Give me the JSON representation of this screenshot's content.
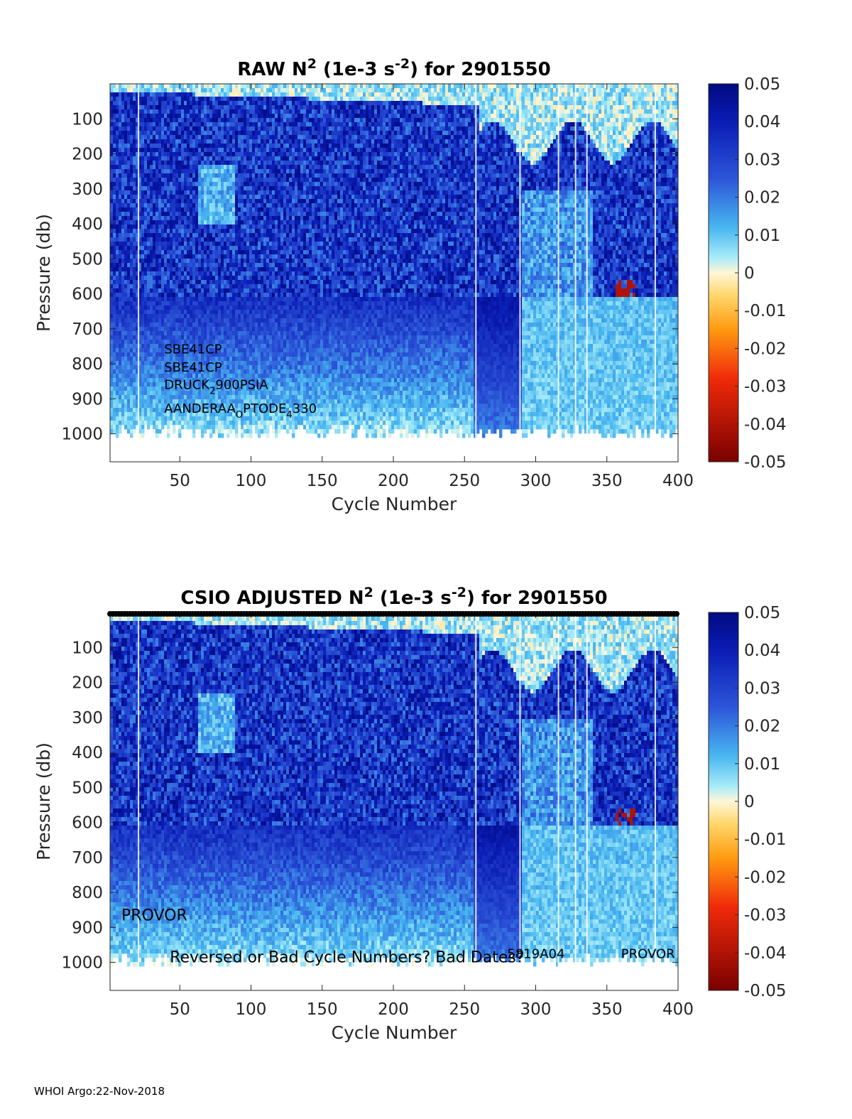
{
  "chart_data": [
    {
      "type": "heatmap",
      "title_parts": [
        "RAW N",
        "2",
        " (1e-3 s",
        "-2",
        ") for 2901550"
      ],
      "xlabel": "Cycle Number",
      "ylabel": "Pressure (db)",
      "xlim": [
        1,
        400
      ],
      "ylim": [
        1080,
        0
      ],
      "xticks": [
        "50",
        "100",
        "150",
        "200",
        "250",
        "300",
        "350",
        "400"
      ],
      "xtick_values": [
        50,
        100,
        150,
        200,
        250,
        300,
        350,
        400
      ],
      "yticks": [
        "100",
        "200",
        "300",
        "400",
        "500",
        "600",
        "700",
        "800",
        "900",
        "1000"
      ],
      "ytick_values": [
        100,
        200,
        300,
        400,
        500,
        600,
        700,
        800,
        900,
        1000
      ],
      "colorbar": {
        "ticks": [
          "0.05",
          "0.04",
          "0.03",
          "0.02",
          "0.01",
          "0",
          "-0.01",
          "-0.02",
          "-0.03",
          "-0.04",
          "-0.05"
        ],
        "range": [
          -0.05,
          0.05
        ]
      },
      "annotations": [
        {
          "text": "SBE41CP",
          "cycle": 39,
          "pressure": 770
        },
        {
          "text": "SBE41CP",
          "cycle": 39,
          "pressure": 822
        },
        {
          "text": "DRUCK",
          "sub": "2",
          "rest": "900PSIA",
          "cycle": 39,
          "pressure": 872
        },
        {
          "text": "AANDERAA",
          "sub": "O",
          "mid": "PTODE",
          "sub2": "4",
          "rest": "330",
          "cycle": 39,
          "pressure": 940
        }
      ]
    },
    {
      "type": "heatmap",
      "title_parts": [
        "CSIO  ADJUSTED N",
        "2",
        " (1e-3 s",
        "-2",
        ") for 2901550"
      ],
      "xlabel": "Cycle Number",
      "ylabel": "Pressure (db)",
      "xlim": [
        1,
        400
      ],
      "ylim": [
        1080,
        0
      ],
      "xticks": [
        "50",
        "100",
        "150",
        "200",
        "250",
        "300",
        "350",
        "400"
      ],
      "xtick_values": [
        50,
        100,
        150,
        200,
        250,
        300,
        350,
        400
      ],
      "yticks": [
        "100",
        "200",
        "300",
        "400",
        "500",
        "600",
        "700",
        "800",
        "900",
        "1000"
      ],
      "ytick_values": [
        100,
        200,
        300,
        400,
        500,
        600,
        700,
        800,
        900,
        1000
      ],
      "colorbar": {
        "ticks": [
          "0.05",
          "0.04",
          "0.03",
          "0.02",
          "0.01",
          "0",
          "-0.01",
          "-0.02",
          "-0.03",
          "-0.04",
          "-0.05"
        ],
        "range": [
          -0.05,
          0.05
        ]
      },
      "annotations": [
        {
          "text": "PROVOR",
          "cycle": 9,
          "pressure": 880,
          "size": "large"
        },
        {
          "text": "Reversed or Bad Cycle Numbers? Bad Dates?",
          "cycle": 43,
          "pressure": 1000,
          "size": "large"
        },
        {
          "text": "5819A04",
          "cycle": 280,
          "pressure": 988,
          "size": "medium"
        },
        {
          "text": "PROVOR",
          "cycle": 360,
          "pressure": 988,
          "size": "medium"
        }
      ]
    }
  ],
  "footer": "WHOI Argo:22-Nov-2018"
}
